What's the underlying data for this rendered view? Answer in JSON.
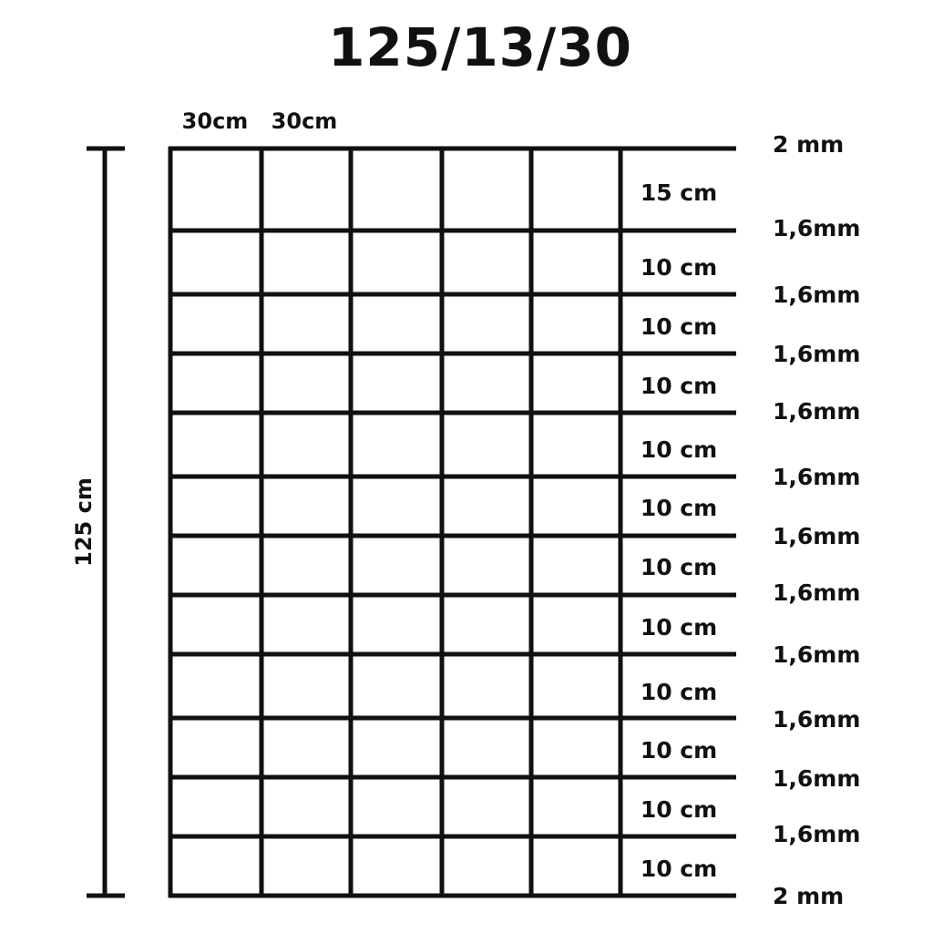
{
  "title": "125/13/30",
  "height_label": "125 cm",
  "column_labels": [
    "30cm",
    "30cm"
  ],
  "spacing_labels": [
    "15 cm",
    "10 cm",
    "10 cm",
    "10 cm",
    "10 cm",
    "10 cm",
    "10 cm",
    "10 cm",
    "10 cm",
    "10 cm",
    "10 cm",
    "10 cm"
  ],
  "wire_labels": [
    "2 mm",
    "1,6mm",
    "1,6mm",
    "1,6mm",
    "1,6mm",
    "1,6mm",
    "1,6mm",
    "1,6mm",
    "1,6mm",
    "1,6mm",
    "1,6mm",
    "1,6mm",
    "2 mm"
  ],
  "colors": {
    "line": "#111111",
    "background": "#ffffff"
  }
}
